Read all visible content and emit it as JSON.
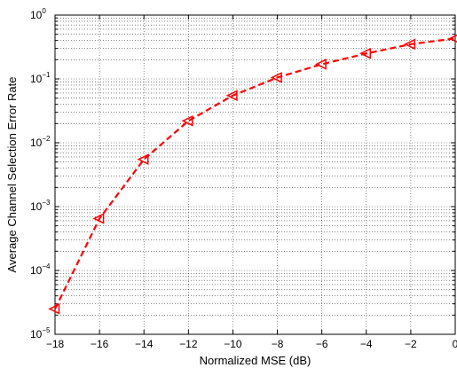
{
  "chart_data": {
    "type": "line",
    "title": "",
    "xlabel": "Normalized MSE (dB)",
    "ylabel": "Average Channel Selection Error Rate",
    "x_scale": "linear",
    "y_scale": "log",
    "xlim": [
      -18,
      0
    ],
    "ylim": [
      1e-05,
      1
    ],
    "x_ticks": [
      -18,
      -16,
      -14,
      -12,
      -10,
      -8,
      -6,
      -4,
      -2,
      0
    ],
    "x_tick_labels": [
      "−18",
      "−16",
      "−14",
      "−12",
      "−10",
      "−8",
      "−6",
      "−4",
      "−2",
      "0"
    ],
    "y_tick_exponents": [
      "−5",
      "−4",
      "−3",
      "−2",
      "−1",
      "0"
    ],
    "y_tick_base": "10",
    "grid": true,
    "series": [
      {
        "color": "#ff0000",
        "line_style": "dashed",
        "marker": "triangle-left-open",
        "x": [
          -18,
          -16,
          -14,
          -12,
          -10,
          -8,
          -6,
          -4,
          -2,
          0
        ],
        "y": [
          2.5e-05,
          0.00065,
          0.0055,
          0.022,
          0.055,
          0.105,
          0.17,
          0.25,
          0.35,
          0.43
        ]
      }
    ]
  }
}
